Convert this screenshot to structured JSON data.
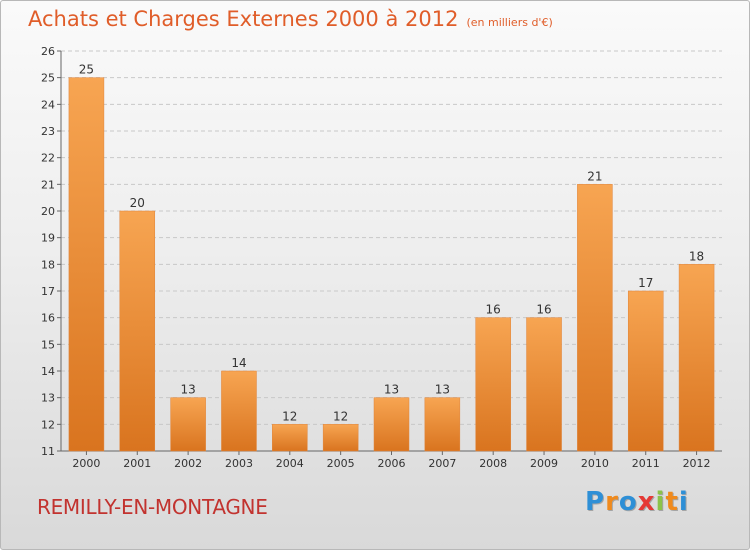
{
  "chart_data": {
    "type": "bar",
    "title": "Achats et Charges Externes 2000 à 2012",
    "unit": "(en milliers d'€)",
    "categories": [
      "2000",
      "2001",
      "2002",
      "2003",
      "2004",
      "2005",
      "2006",
      "2007",
      "2008",
      "2009",
      "2010",
      "2011",
      "2012"
    ],
    "values": [
      25,
      20,
      13,
      14,
      12,
      12,
      13,
      13,
      16,
      16,
      21,
      17,
      18
    ],
    "ylim": [
      11,
      26
    ],
    "yticks": [
      "11",
      "12",
      "13",
      "14",
      "15",
      "16",
      "17",
      "18",
      "19",
      "20",
      "21",
      "22",
      "23",
      "24",
      "25",
      "26"
    ],
    "grid": true,
    "bar_color": "#f0923a"
  },
  "commune": "REMILLY-EN-MONTAGNE",
  "logo": {
    "letters": [
      "P",
      "r",
      "o",
      "x",
      "i",
      "t",
      "i"
    ],
    "colors": [
      "#2e8fd6",
      "#f08a1c",
      "#2e8fd6",
      "#e53935",
      "#8bc34a",
      "#f08a1c",
      "#2e8fd6"
    ]
  }
}
